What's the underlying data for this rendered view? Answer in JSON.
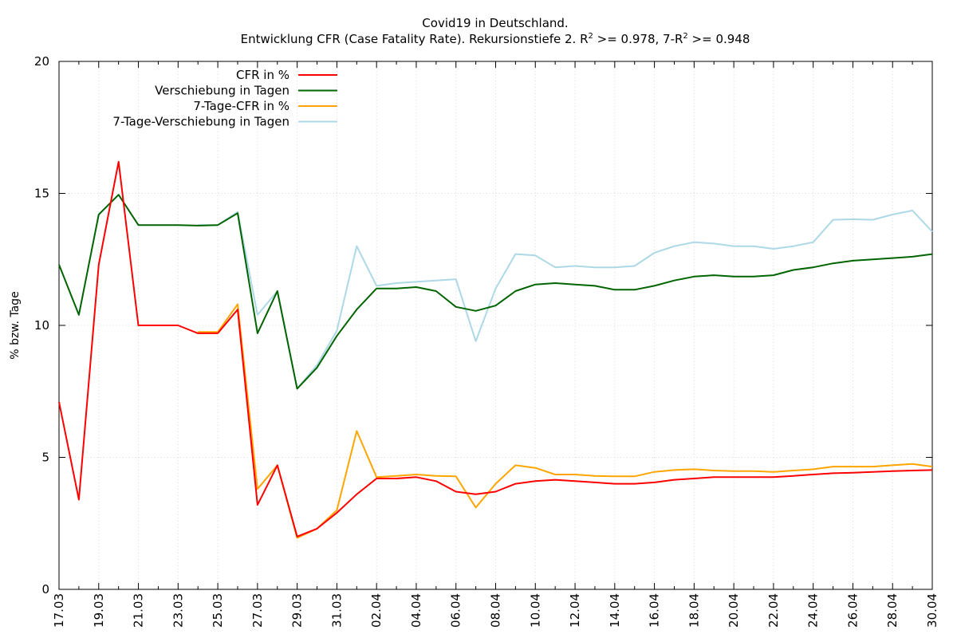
{
  "chart_data": {
    "type": "line",
    "title": "Covid19 in Deutschland.",
    "subtitle": {
      "part1": "Entwicklung CFR (Case Fatality Rate). Rekursionstiefe 2. R",
      "sup1": "2",
      "part2": " >= 0.978, 7-R",
      "sup2": "2",
      "part3": " >= 0.948"
    },
    "ylabel": "% bzw. Tage",
    "xlabel": "",
    "ylim": [
      0,
      20
    ],
    "y_ticks": [
      "0",
      "5",
      "10",
      "15",
      "20"
    ],
    "x_tick_labels": [
      "17.03",
      "19.03",
      "21.03",
      "23.03",
      "25.03",
      "27.03",
      "29.03",
      "31.03",
      "02.04",
      "04.04",
      "06.04",
      "08.04",
      "10.04",
      "12.04",
      "14.04",
      "16.04",
      "18.04",
      "20.04",
      "22.04",
      "24.04",
      "26.04",
      "28.04",
      "30.04"
    ],
    "grid": true,
    "legend_position": "top-left",
    "series": [
      {
        "name": "CFR in %",
        "color": "#ff0000",
        "start_index": 0,
        "values": [
          7.1,
          3.4,
          12.3,
          16.2,
          10.0,
          10.0,
          10.0,
          9.7,
          9.7,
          10.6,
          3.2,
          4.7,
          2.0,
          2.3,
          2.9,
          3.6,
          4.2,
          4.2,
          4.25,
          4.1,
          3.7,
          3.6,
          3.7,
          4.0,
          4.1,
          4.15,
          4.1,
          4.05,
          4.0,
          4.0,
          4.05,
          4.15,
          4.2,
          4.25,
          4.25,
          4.25,
          4.25,
          4.3,
          4.35,
          4.4,
          4.42,
          4.45,
          4.48,
          4.5,
          4.52
        ]
      },
      {
        "name": "Verschiebung in Tagen",
        "color": "#006400",
        "start_index": 0,
        "values": [
          12.3,
          10.4,
          14.2,
          14.95,
          13.8,
          13.8,
          13.8,
          13.78,
          13.8,
          14.25,
          9.7,
          11.3,
          7.6,
          8.4,
          9.6,
          10.6,
          11.4,
          11.4,
          11.45,
          11.3,
          10.7,
          10.55,
          10.75,
          11.3,
          11.55,
          11.6,
          11.55,
          11.5,
          11.35,
          11.35,
          11.5,
          11.7,
          11.85,
          11.9,
          11.85,
          11.85,
          11.9,
          12.1,
          12.2,
          12.35,
          12.45,
          12.5,
          12.55,
          12.6,
          12.7
        ]
      },
      {
        "name": "7-Tage-CFR in %",
        "color": "#ffa500",
        "start_index": 7,
        "values": [
          9.75,
          9.75,
          10.8,
          3.8,
          4.7,
          1.95,
          2.3,
          3.0,
          6.0,
          4.25,
          4.3,
          4.35,
          4.3,
          4.28,
          3.1,
          4.0,
          4.7,
          4.6,
          4.35,
          4.35,
          4.3,
          4.28,
          4.28,
          4.45,
          4.52,
          4.55,
          4.5,
          4.48,
          4.48,
          4.45,
          4.5,
          4.55,
          4.65,
          4.65,
          4.65,
          4.7,
          4.75,
          4.65
        ]
      },
      {
        "name": "7-Tage-Verschiebung in Tagen",
        "color": "#add8e6",
        "start_index": 7,
        "values": [
          13.8,
          13.8,
          14.3,
          10.4,
          11.3,
          7.6,
          8.5,
          9.8,
          13.0,
          11.5,
          11.6,
          11.65,
          11.7,
          11.75,
          9.4,
          11.4,
          12.7,
          12.65,
          12.2,
          12.25,
          12.2,
          12.2,
          12.25,
          12.75,
          13.0,
          13.15,
          13.1,
          13.0,
          13.0,
          12.9,
          13.0,
          13.15,
          14.0,
          14.02,
          14.0,
          14.2,
          14.35,
          13.55
        ]
      }
    ]
  }
}
